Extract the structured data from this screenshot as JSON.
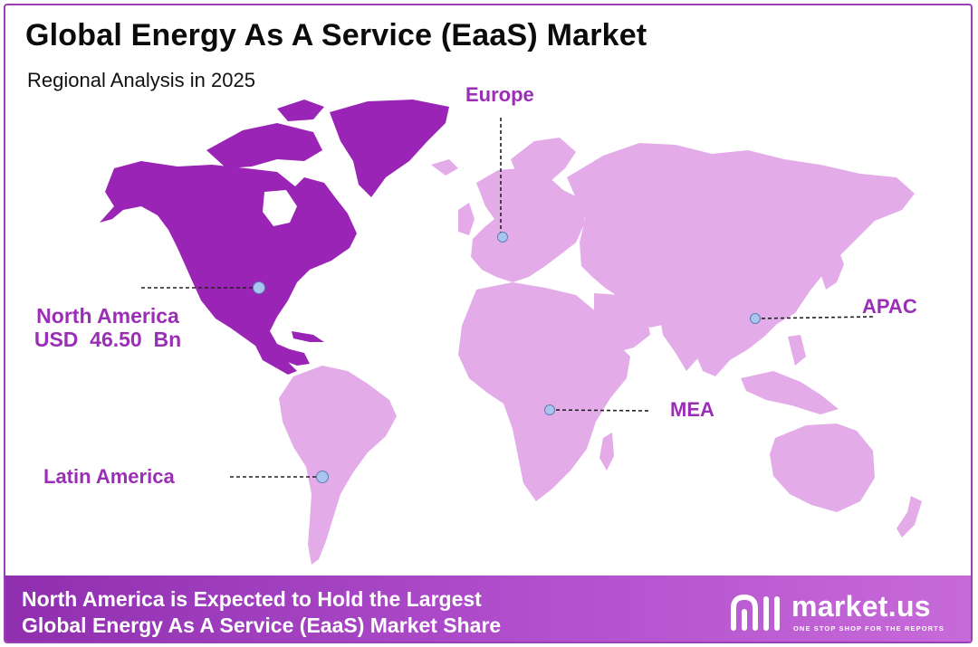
{
  "header": {
    "title": "Global Energy As A Service (EaaS) Market",
    "subtitle": "Regional Analysis in 2025"
  },
  "regions": {
    "north_america": {
      "name": "North America",
      "value": "USD  46.50  Bn",
      "highlighted": true
    },
    "europe": {
      "name": "Europe"
    },
    "apac": {
      "name": "APAC"
    },
    "mea": {
      "name": "MEA"
    },
    "latin_america": {
      "name": "Latin America"
    }
  },
  "colors": {
    "highlight_region": "#9a24b5",
    "other_region": "#e3ace9",
    "label": "#9a2fb5",
    "marker": "#a9c4ee",
    "banner": "#a440c2"
  },
  "banner": {
    "line1": "North America is Expected to Hold the  Largest",
    "line2": "Global Energy As A Service (EaaS) Market Share"
  },
  "logo": {
    "name": "market.us",
    "tagline": "ONE STOP SHOP FOR THE REPORTS"
  }
}
